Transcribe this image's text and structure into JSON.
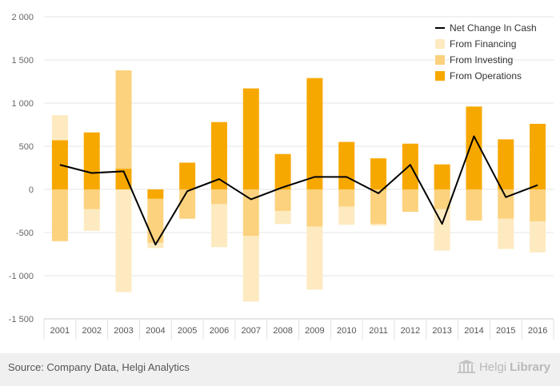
{
  "chart_data": {
    "type": "bar",
    "stacked": true,
    "categories": [
      "2001",
      "2002",
      "2003",
      "2004",
      "2005",
      "2006",
      "2007",
      "2008",
      "2009",
      "2010",
      "2011",
      "2012",
      "2013",
      "2014",
      "2015",
      "2016"
    ],
    "series": [
      {
        "name": "From Operations",
        "kind": "bar",
        "color": "#f7a800",
        "values": [
          570,
          660,
          240,
          -110,
          310,
          780,
          1170,
          410,
          1290,
          550,
          360,
          530,
          290,
          960,
          580,
          760
        ]
      },
      {
        "name": "From Investing",
        "kind": "bar",
        "color": "#fcd27e",
        "values": [
          -600,
          -230,
          1140,
          -510,
          -340,
          -170,
          -540,
          -250,
          -430,
          -200,
          -400,
          -260,
          -230,
          -360,
          -340,
          -370
        ]
      },
      {
        "name": "From Financing",
        "kind": "bar",
        "color": "#feeac0",
        "values": [
          290,
          -250,
          -1190,
          -60,
          0,
          -500,
          -760,
          -150,
          -730,
          -210,
          -20,
          0,
          -480,
          0,
          -350,
          -360
        ]
      },
      {
        "name": "Net Change In Cash",
        "kind": "line",
        "color": "#000000",
        "values": [
          285,
          190,
          210,
          -640,
          -20,
          120,
          -115,
          25,
          145,
          145,
          -45,
          285,
          -400,
          615,
          -90,
          50
        ]
      }
    ],
    "ylim": [
      -1500,
      2000
    ],
    "yticks": [
      -1500,
      -1000,
      -500,
      0,
      500,
      1000,
      1500,
      2000
    ],
    "ytick_labels": [
      "-1 500",
      "-1 000",
      "-500",
      "0",
      "500",
      "1 000",
      "1 500",
      "2 000"
    ],
    "grid": true,
    "legend_position": "top-right",
    "legend": [
      "Net Change In Cash",
      "From Financing",
      "From Investing",
      "From Operations"
    ]
  },
  "footer": {
    "source": "Source: Company Data, Helgi Analytics",
    "logo_regular": "Helgi",
    "logo_bold": "Library"
  }
}
